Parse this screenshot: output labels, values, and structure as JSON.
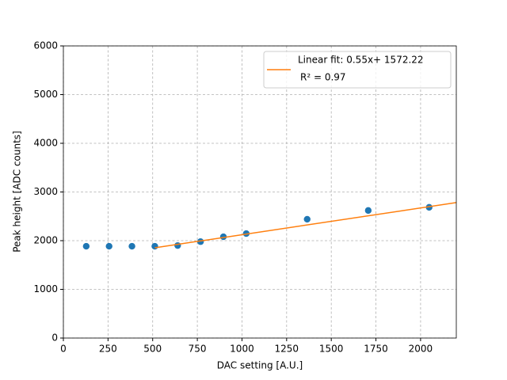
{
  "chart_data": {
    "type": "scatter",
    "xlabel": "DAC setting [A.U.]",
    "ylabel": "Peak height [ADC counts]",
    "xlim": [
      0,
      2200
    ],
    "ylim": [
      0,
      6000
    ],
    "xticks": [
      0,
      250,
      500,
      750,
      1000,
      1250,
      1500,
      1750,
      2000
    ],
    "yticks": [
      0,
      1000,
      2000,
      3000,
      4000,
      5000,
      6000
    ],
    "grid": true,
    "legend": "upper right",
    "series": [
      {
        "type": "scatter",
        "color": "#1f77b4",
        "x": [
          128,
          256,
          384,
          512,
          640,
          768,
          896,
          1024,
          1365,
          1707,
          2048
        ],
        "values": [
          1885,
          1885,
          1885,
          1885,
          1900,
          1980,
          2080,
          2145,
          2440,
          2620,
          2685
        ]
      },
      {
        "type": "line",
        "color": "#ff7f0e",
        "name": "Linear fit: 0.55x+ 1572.22",
        "x": [
          512,
          2200
        ],
        "values": [
          1854,
          2782
        ]
      }
    ],
    "legend_note": "R² = 0.97"
  }
}
